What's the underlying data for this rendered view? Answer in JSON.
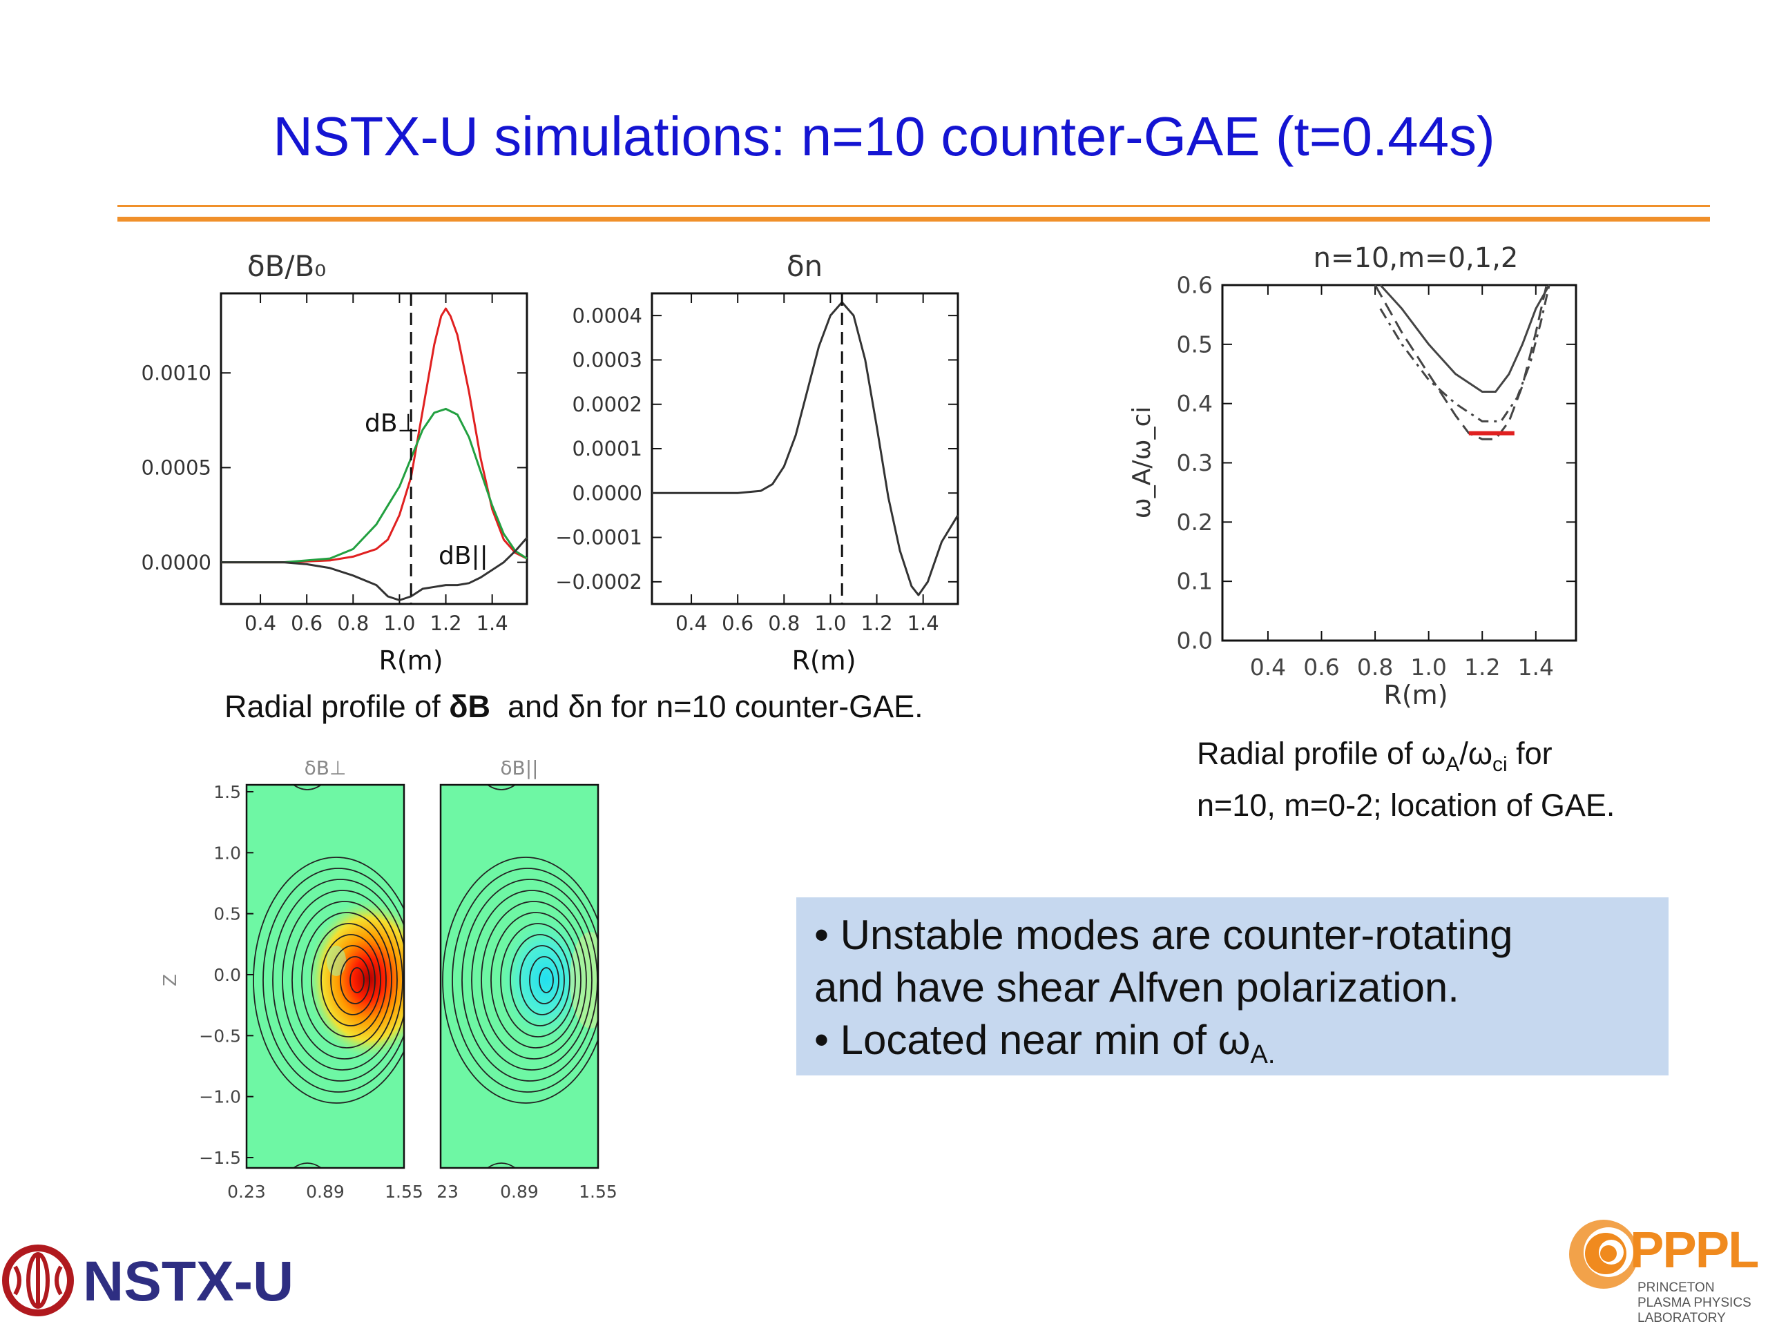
{
  "slide": {
    "title": "NSTX-U simulations: n=10 counter-GAE (t=0.44s)"
  },
  "colors": {
    "title": "#1414d2",
    "rule": "#f0902a",
    "note_bg": "#c6d8ef",
    "red_curve": "#e02020",
    "green_curve": "#22a040",
    "contour_bg": "#6ef7a4",
    "ppppl_orange": "#f08a1e"
  },
  "chart_data": [
    {
      "type": "line",
      "title": "δB/B₀",
      "xlabel": "R(m)",
      "xlim": [
        0.23,
        1.55
      ],
      "ylim": [
        -0.00022,
        0.00142
      ],
      "xticks": [
        "0.4",
        "0.6",
        "0.8",
        "1.0",
        "1.2",
        "1.4"
      ],
      "yticks": [
        "0.0010",
        "0.0005",
        "0.0000"
      ],
      "vline": 1.05,
      "annotations": [
        "dB⊥",
        "dB||"
      ],
      "series": [
        {
          "name": "dB⊥",
          "color": "red",
          "x": [
            0.23,
            0.5,
            0.7,
            0.8,
            0.9,
            0.95,
            1.0,
            1.05,
            1.1,
            1.15,
            1.18,
            1.2,
            1.22,
            1.25,
            1.3,
            1.35,
            1.4,
            1.45,
            1.5,
            1.55
          ],
          "y": [
            0,
            0,
            1e-05,
            3e-05,
            7e-05,
            0.00012,
            0.00025,
            0.00045,
            0.0008,
            0.00115,
            0.0013,
            0.00134,
            0.0013,
            0.0012,
            0.0009,
            0.00055,
            0.00028,
            0.00012,
            5e-05,
            2e-05
          ]
        },
        {
          "name": "",
          "color": "green",
          "x": [
            0.23,
            0.5,
            0.6,
            0.7,
            0.8,
            0.9,
            0.95,
            1.0,
            1.05,
            1.1,
            1.15,
            1.2,
            1.25,
            1.3,
            1.35,
            1.4,
            1.45,
            1.5,
            1.55
          ],
          "y": [
            0,
            0,
            1e-05,
            2e-05,
            7e-05,
            0.0002,
            0.0003,
            0.0004,
            0.00055,
            0.0007,
            0.00079,
            0.00081,
            0.00078,
            0.00066,
            0.00048,
            0.0003,
            0.00015,
            6e-05,
            2e-05
          ]
        },
        {
          "name": "dB||",
          "color": "black",
          "x": [
            0.23,
            0.5,
            0.6,
            0.7,
            0.8,
            0.9,
            0.95,
            1.0,
            1.05,
            1.1,
            1.15,
            1.2,
            1.25,
            1.3,
            1.35,
            1.4,
            1.45,
            1.5,
            1.55
          ],
          "y": [
            0,
            0,
            -1e-05,
            -3e-05,
            -7e-05,
            -0.00012,
            -0.00018,
            -0.0002,
            -0.00018,
            -0.00014,
            -0.00013,
            -0.00012,
            -0.00012,
            -0.00011,
            -8e-05,
            -4e-05,
            0,
            6e-05,
            0.00013
          ]
        }
      ]
    },
    {
      "type": "line",
      "title": "δn",
      "xlabel": "R(m)",
      "xlim": [
        0.23,
        1.55
      ],
      "ylim": [
        -0.00025,
        0.00045
      ],
      "xticks": [
        "0.4",
        "0.6",
        "0.8",
        "1.0",
        "1.2",
        "1.4"
      ],
      "yticks": [
        "0.0004",
        "0.0003",
        "0.0002",
        "0.0001",
        "0.0000",
        "−0.0001",
        "−0.0002"
      ],
      "vline": 1.05,
      "series": [
        {
          "name": "",
          "color": "black",
          "x": [
            0.23,
            0.5,
            0.6,
            0.7,
            0.75,
            0.8,
            0.85,
            0.9,
            0.95,
            1.0,
            1.05,
            1.1,
            1.15,
            1.2,
            1.25,
            1.3,
            1.35,
            1.38,
            1.42,
            1.48,
            1.55
          ],
          "y": [
            0,
            0,
            0,
            5e-06,
            2e-05,
            6e-05,
            0.00013,
            0.00023,
            0.00033,
            0.0004,
            0.00043,
            0.0004,
            0.0003,
            0.00015,
            -1e-05,
            -0.00013,
            -0.00021,
            -0.00023,
            -0.0002,
            -0.00011,
            -5e-05
          ]
        }
      ]
    },
    {
      "type": "line",
      "title": "n=10,m=0,1,2",
      "xlabel": "R(m)",
      "ylabel": "ω_A/ω_ci",
      "xlim": [
        0.23,
        1.55
      ],
      "ylim": [
        0.0,
        0.6
      ],
      "xticks": [
        "0.4",
        "0.6",
        "0.8",
        "1.0",
        "1.2",
        "1.4"
      ],
      "yticks": [
        "0.6",
        "0.5",
        "0.4",
        "0.3",
        "0.2",
        "0.1",
        "0.0"
      ],
      "series": [
        {
          "name": "",
          "style": "solid",
          "x": [
            0.82,
            0.9,
            1.0,
            1.1,
            1.2,
            1.25,
            1.3,
            1.35,
            1.4,
            1.45
          ],
          "y": [
            0.6,
            0.56,
            0.5,
            0.45,
            0.42,
            0.42,
            0.45,
            0.5,
            0.56,
            0.6
          ]
        },
        {
          "name": "",
          "style": "dashdot",
          "x": [
            0.82,
            0.9,
            1.0,
            1.1,
            1.2,
            1.27,
            1.33,
            1.38,
            1.42,
            1.45
          ],
          "y": [
            0.56,
            0.5,
            0.44,
            0.4,
            0.37,
            0.37,
            0.41,
            0.47,
            0.54,
            0.6
          ]
        },
        {
          "name": "",
          "style": "dash",
          "x": [
            0.8,
            0.9,
            1.0,
            1.1,
            1.15,
            1.2,
            1.25,
            1.3,
            1.35,
            1.4,
            1.44
          ],
          "y": [
            0.6,
            0.52,
            0.45,
            0.38,
            0.35,
            0.34,
            0.34,
            0.37,
            0.43,
            0.52,
            0.6
          ]
        },
        {
          "name": "",
          "style": "red",
          "x": [
            1.15,
            1.32
          ],
          "y": [
            0.35,
            0.35
          ]
        }
      ]
    },
    {
      "type": "heatmap",
      "title": "δB⊥",
      "ylabel": "Z",
      "xticks": [
        "0.23",
        "0.89",
        "1.55"
      ],
      "yticks": [
        "1.5",
        "1.0",
        "0.5",
        "0.0",
        "−0.5",
        "−1.0",
        "−1.5"
      ]
    },
    {
      "type": "heatmap",
      "title": "δB||",
      "xticks": [
        "23",
        "0.89",
        "1.55"
      ]
    }
  ],
  "captions": {
    "left_prefix": "Radial profile of ",
    "left_bold": "δB",
    "left_suffix": "  and δn for n=10 counter-GAE.",
    "right_line1_a": "Radial profile of ω",
    "right_line1_sub1": "A",
    "right_line1_b": "/ω",
    "right_line1_sub2": "ci",
    "right_line1_c": " for",
    "right_line2": "n=10, m=0-2; location of GAE."
  },
  "notes": {
    "bullet1_line1": "•  Unstable modes are counter-rotating",
    "bullet1_line2": "and have shear Alfven polarization.",
    "bullet2": "•  Located near min of  ω",
    "bullet2_sub": "A."
  },
  "logos": {
    "nstx": "NSTX-U",
    "pppl": "PPPL",
    "pppl_line1": "PRINCETON",
    "pppl_line2": "PLASMA PHYSICS",
    "pppl_line3": "LABORATORY"
  }
}
